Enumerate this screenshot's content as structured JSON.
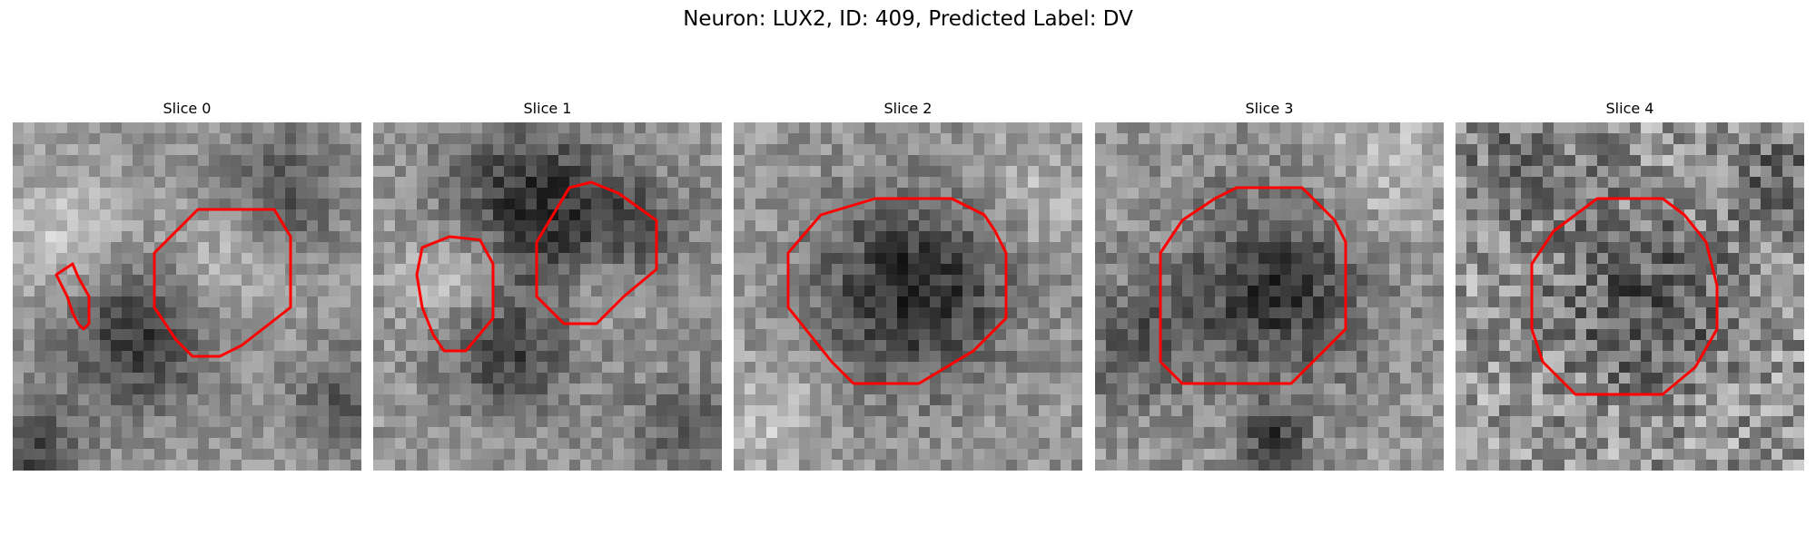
{
  "figure": {
    "title": "Neuron: LUX2, ID: 409, Predicted Label: DV"
  },
  "panels": [
    {
      "title": "Slice 0",
      "description": "grayscale microscopy patch with two red outlines"
    },
    {
      "title": "Slice 1",
      "description": "grayscale microscopy patch with two red outlines"
    },
    {
      "title": "Slice 2",
      "description": "grayscale microscopy patch with one red outline around dark cell"
    },
    {
      "title": "Slice 3",
      "description": "grayscale microscopy patch with one red outline around dark cell"
    },
    {
      "title": "Slice 4",
      "description": "grayscale microscopy patch with one red outline around dark cell"
    }
  ],
  "colors": {
    "contour": "#ff0000",
    "background": "#ffffff"
  }
}
